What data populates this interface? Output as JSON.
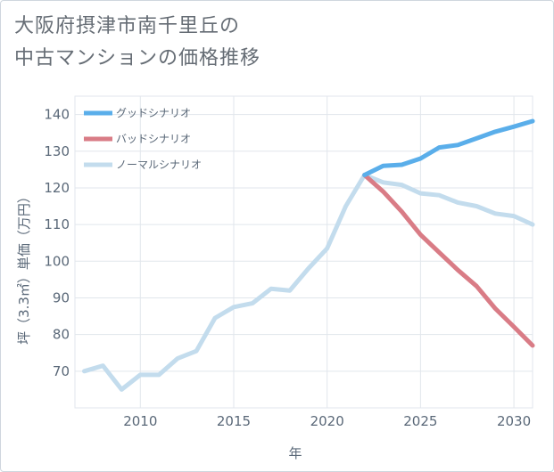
{
  "title_lines": [
    "大阪府摂津市南千里丘の",
    "中古マンションの価格推移"
  ],
  "chart_data": {
    "type": "line",
    "xlabel": "年",
    "ylabel": "坪（3.3㎡）単価（万円）",
    "xlim": [
      2006.5,
      2031
    ],
    "ylim": [
      60,
      145
    ],
    "x_ticks": [
      2010,
      2015,
      2020,
      2025,
      2030
    ],
    "y_ticks": [
      70,
      80,
      90,
      100,
      110,
      120,
      130,
      140
    ],
    "grid": true,
    "legend_position": "top-left",
    "series": [
      {
        "name": "グッドシナリオ",
        "color": "#5aaeea",
        "x": [
          2022,
          2023,
          2024,
          2025,
          2026,
          2027,
          2028,
          2029,
          2030,
          2031
        ],
        "values": [
          123.5,
          126,
          126.3,
          128,
          131,
          131.7,
          133.5,
          135.3,
          136.7,
          138.2
        ]
      },
      {
        "name": "バッドシナリオ",
        "color": "#d97c86",
        "x": [
          2022,
          2023,
          2024,
          2025,
          2026,
          2027,
          2028,
          2029,
          2030,
          2031
        ],
        "values": [
          123.5,
          119,
          113.5,
          107.2,
          102.4,
          97.6,
          93.2,
          87.1,
          82.1,
          77
        ]
      },
      {
        "name": "ノーマルシナリオ",
        "color": "#c3dced",
        "x": [
          2007,
          2008,
          2009,
          2010,
          2011,
          2012,
          2013,
          2014,
          2015,
          2016,
          2017,
          2018,
          2019,
          2020,
          2021,
          2022,
          2023,
          2024,
          2025,
          2026,
          2027,
          2028,
          2029,
          2030,
          2031
        ],
        "values": [
          70,
          71.5,
          65,
          69,
          69,
          73.5,
          75.5,
          84.5,
          87.5,
          88.5,
          92.5,
          92,
          98,
          103.5,
          115,
          123.5,
          121.5,
          120.8,
          118.5,
          118,
          116,
          115,
          113,
          112.3,
          110
        ]
      }
    ]
  }
}
